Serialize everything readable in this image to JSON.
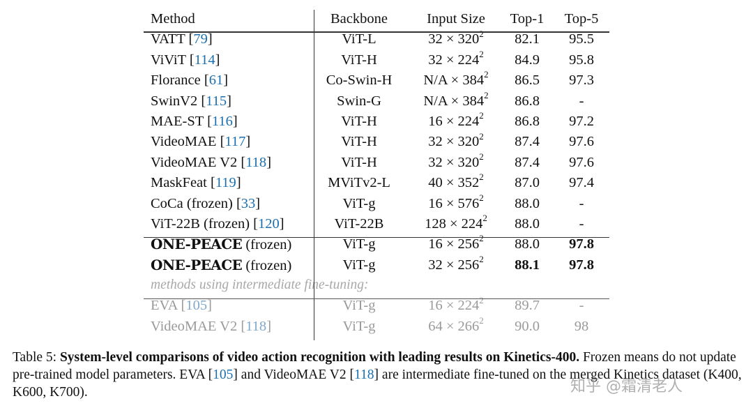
{
  "table": {
    "headers": [
      "Method",
      "Backbone",
      "Input Size",
      "Top-1",
      "Top-5"
    ],
    "rows": [
      {
        "method": "VATT",
        "ref": "79",
        "suffix": "",
        "backbone": "ViT-L",
        "size_base": "32 × 320",
        "size_exp": "2",
        "top1": "82.1",
        "top5": "95.5"
      },
      {
        "method": "ViViT",
        "ref": "114",
        "suffix": "",
        "backbone": "ViT-H",
        "size_base": "32 × 224",
        "size_exp": "2",
        "top1": "84.9",
        "top5": "95.8"
      },
      {
        "method": "Florance",
        "ref": "61",
        "suffix": "",
        "backbone": "Co-Swin-H",
        "size_base": "N/A × 384",
        "size_exp": "2",
        "top1": "86.5",
        "top5": "97.3"
      },
      {
        "method": "SwinV2",
        "ref": "115",
        "suffix": "",
        "backbone": "Swin-G",
        "size_base": "N/A × 384",
        "size_exp": "2",
        "top1": "86.8",
        "top5": "-"
      },
      {
        "method": "MAE-ST",
        "ref": "116",
        "suffix": "",
        "backbone": "ViT-H",
        "size_base": "16 × 224",
        "size_exp": "2",
        "top1": "86.8",
        "top5": "97.2"
      },
      {
        "method": "VideoMAE",
        "ref": "117",
        "suffix": "",
        "backbone": "ViT-H",
        "size_base": "32 × 320",
        "size_exp": "2",
        "top1": "87.4",
        "top5": "97.6"
      },
      {
        "method": "VideoMAE V2",
        "ref": "118",
        "suffix": "",
        "backbone": "ViT-H",
        "size_base": "32 × 320",
        "size_exp": "2",
        "top1": "87.4",
        "top5": "97.6"
      },
      {
        "method": "MaskFeat",
        "ref": "119",
        "suffix": "",
        "backbone": "MViTv2-L",
        "size_base": "40 × 352",
        "size_exp": "2",
        "top1": "87.0",
        "top5": "97.4"
      },
      {
        "method": "CoCa (frozen)",
        "ref": "33",
        "suffix": "",
        "backbone": "ViT-g",
        "size_base": "16 × 576",
        "size_exp": "2",
        "top1": "88.0",
        "top5": "-"
      },
      {
        "method": "ViT-22B (frozen)",
        "ref": "120",
        "suffix": "",
        "backbone": "ViT-22B",
        "size_base": "128 × 224",
        "size_exp": "2",
        "top1": "88.0",
        "top5": "-"
      }
    ],
    "ours": [
      {
        "method": "ONE-PEACE",
        "suffix": " (frozen)",
        "backbone": "ViT-g",
        "size_base": "16 × 256",
        "size_exp": "2",
        "top1": "88.0",
        "top5": "97.8"
      },
      {
        "method": "ONE-PEACE",
        "suffix": " (frozen)",
        "backbone": "ViT-g",
        "size_base": "32 × 256",
        "size_exp": "2",
        "top1": "88.1",
        "top5": "97.8"
      }
    ],
    "note": "methods using intermediate fine-tuning:",
    "intermediate": [
      {
        "method": "EVA",
        "ref": "105",
        "suffix": "",
        "backbone": "ViT-g",
        "size_base": "16 × 224",
        "size_exp": "2",
        "top1": "89.7",
        "top5": "-"
      },
      {
        "method": "VideoMAE V2",
        "ref": "118",
        "suffix": "",
        "backbone": "ViT-g",
        "size_base": "64 × 266",
        "size_exp": "2",
        "top1": "90.0",
        "top5": "98"
      }
    ]
  },
  "caption": {
    "label": "Table 5: ",
    "bold": "System-level comparisons of video action recognition with leading results on Kinetics-400.",
    "t1": " Frozen means do not update pre-trained model parameters. EVA [",
    "ref1": "105",
    "t2": "] and VideoMAE V2 [",
    "ref2": "118",
    "t3": "] are intermediate fine-tuned on the merged Kinetics dataset (K400, K600, K700)."
  },
  "watermark": "知乎 @霜清老人"
}
